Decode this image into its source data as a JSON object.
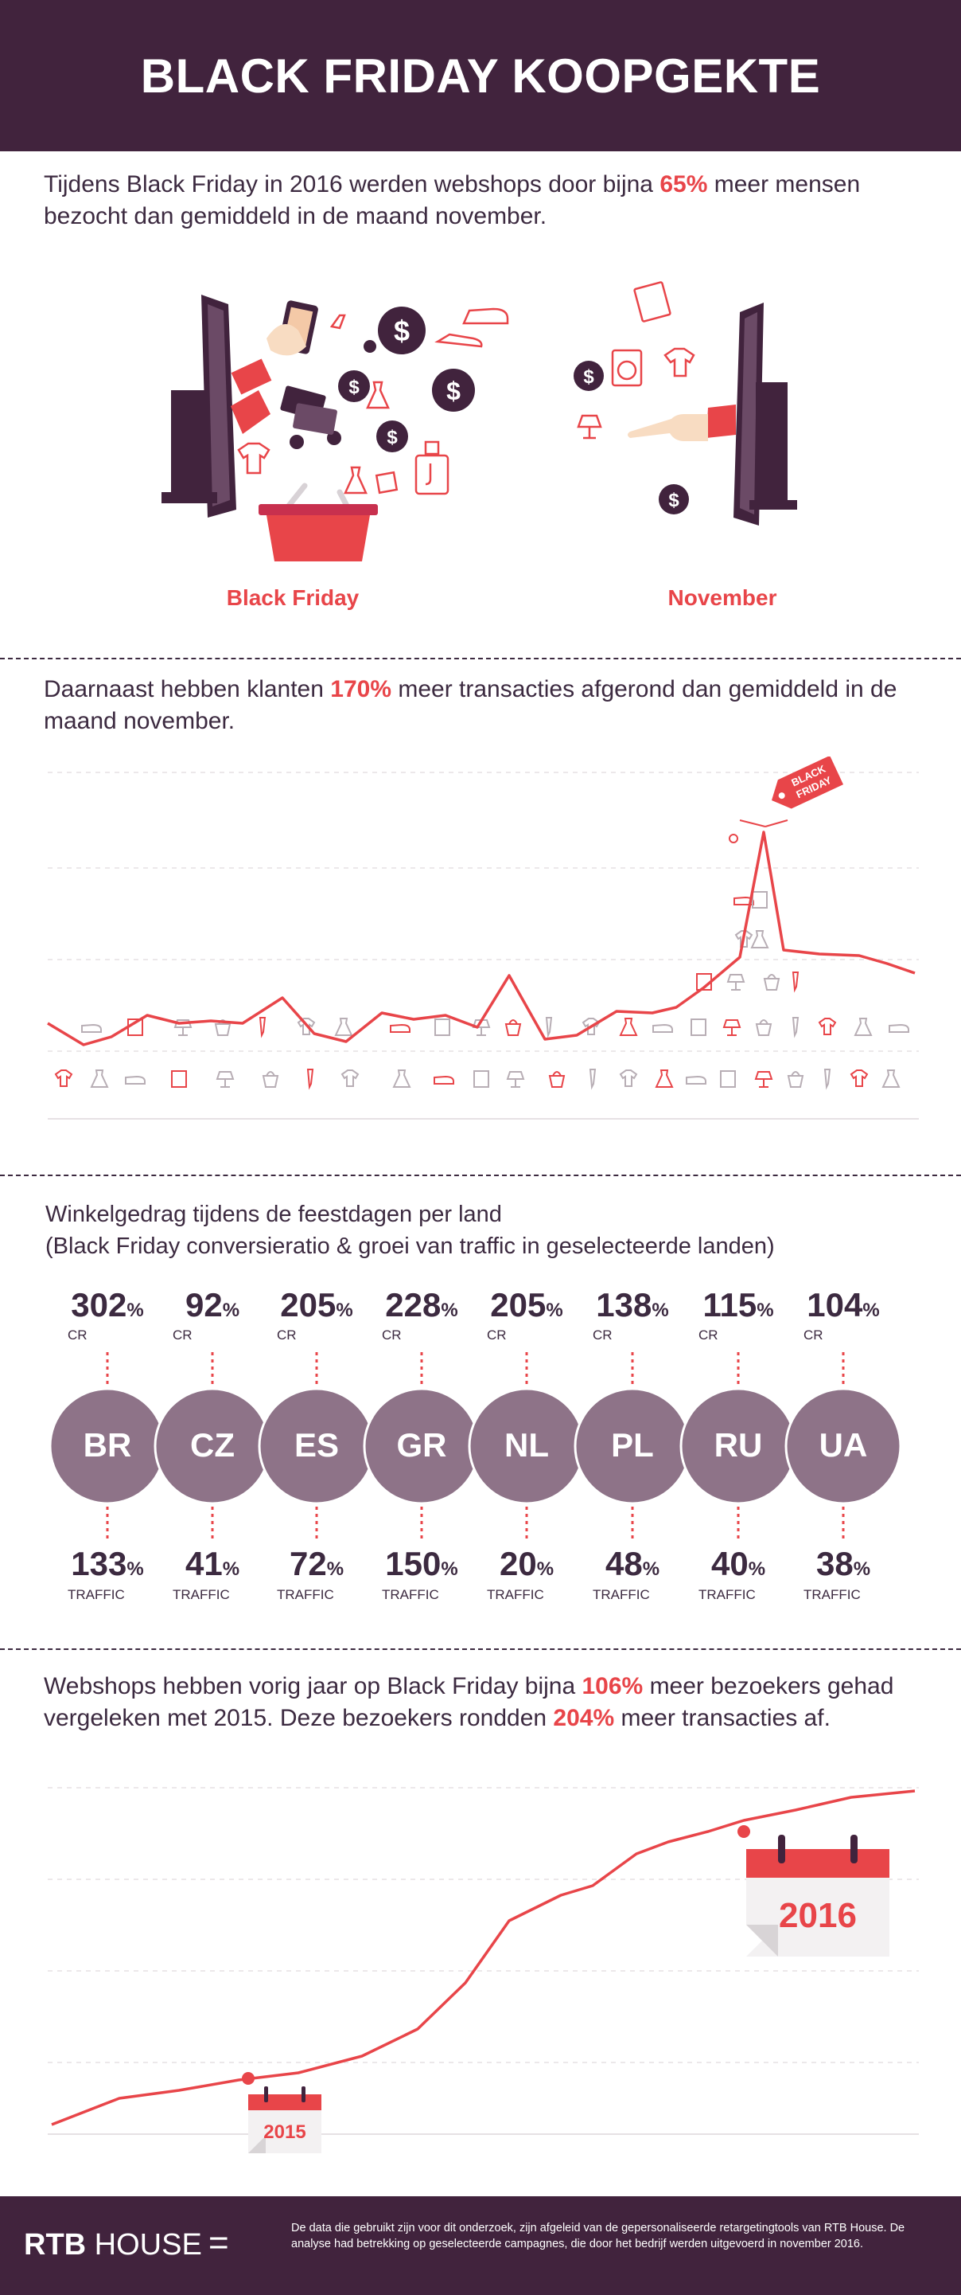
{
  "header": {
    "title": "BLACK FRIDAY KOOPGEKTE"
  },
  "section1": {
    "text_before": "Tijdens Black Friday in 2016 werden webshops door bijna ",
    "highlight": "65%",
    "text_after": " meer mensen bezocht dan gemiddeld in de maand november.",
    "label_left": "Black Friday",
    "label_right": "November"
  },
  "section2": {
    "text_before": "Daarnaast hebben klanten ",
    "highlight": "170%",
    "text_after": " meer transacties afgerond dan gemiddeld in de maand november.",
    "tag_line1": "BLACK",
    "tag_line2": "FRIDAY"
  },
  "section3": {
    "title_line1": "Winkelgedrag tijdens de feestdagen per land",
    "title_line2": "(Black Friday conversieratio & groei van traffic in geselecteerde landen)",
    "cr_label": "CR",
    "traffic_label": "TRAFFIC",
    "pct_sign": "%",
    "countries": [
      {
        "code": "BR",
        "cr": "302",
        "traffic": "133"
      },
      {
        "code": "CZ",
        "cr": "92",
        "traffic": "41"
      },
      {
        "code": "ES",
        "cr": "205",
        "traffic": "72"
      },
      {
        "code": "GR",
        "cr": "228",
        "traffic": "150"
      },
      {
        "code": "NL",
        "cr": "205",
        "traffic": "20"
      },
      {
        "code": "PL",
        "cr": "138",
        "traffic": "48"
      },
      {
        "code": "RU",
        "cr": "115",
        "traffic": "40"
      },
      {
        "code": "UA",
        "cr": "104",
        "traffic": "38"
      }
    ]
  },
  "section4": {
    "text_before": "Webshops hebben vorig jaar op Black Friday bijna ",
    "highlight1": "106%",
    "text_middle": " meer bezoekers gehad vergeleken met 2015. Deze bezoekers rondden ",
    "highlight2": "204%",
    "text_after": " meer transacties af.",
    "year_2015": "2015",
    "year_2016": "2016"
  },
  "footer": {
    "logo_bold": "RTB",
    "logo_thin": "HOUSE",
    "equals": "=",
    "note": "De data die gebruikt zijn voor dit onderzoek, zijn afgeleid van de gepersonaliseerde retargetingtools van RTB House. De analyse had betrekking op geselecteerde campagnes, die door het bedrijf werden uitgevoerd in november 2016."
  },
  "colors": {
    "header_bg": "#41233d",
    "accent_red": "#e84549",
    "circle_mauve": "#8e7388",
    "text_dark": "#3c2a40"
  },
  "icons": [
    "monitor-icon",
    "dollar-coin-icon",
    "shopping-basket-icon",
    "credit-card-icon",
    "phone-icon",
    "shirt-icon",
    "dress-icon",
    "shoe-icon",
    "perfume-icon",
    "lamp-icon",
    "washing-machine-icon",
    "calendar-icon",
    "price-tag-icon"
  ]
}
